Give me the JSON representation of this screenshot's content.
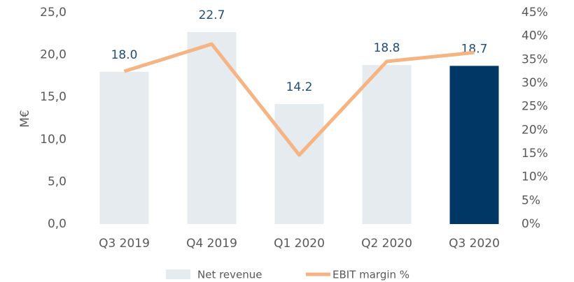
{
  "chart_data": {
    "type": "bar",
    "ylabel": "M€",
    "categories": [
      "Q3 2019",
      "Q4 2019",
      "Q1 2020",
      "Q2 2020",
      "Q3 2020"
    ],
    "series": [
      {
        "name": "Net revenue",
        "type": "bar",
        "color": "#e5ebef",
        "colors": [
          "#e5ebef",
          "#e5ebef",
          "#e5ebef",
          "#e5ebef",
          "#003764"
        ],
        "values": [
          18.0,
          22.7,
          14.2,
          18.8,
          18.7
        ],
        "value_labels": [
          "18.0",
          "22.7",
          "14.2",
          "18.8",
          "18.7"
        ]
      },
      {
        "name": "EBIT margin %",
        "type": "line",
        "axis": "y2",
        "color": "#f5b482",
        "values": [
          32.5,
          38.3,
          14.7,
          34.6,
          36.5
        ]
      }
    ],
    "ylim": [
      0,
      25
    ],
    "yticks": [
      {
        "value": 0,
        "label": "0,0"
      },
      {
        "value": 5,
        "label": "5,0"
      },
      {
        "value": 10,
        "label": "10,0"
      },
      {
        "value": 15,
        "label": "15,0"
      },
      {
        "value": 20,
        "label": "20,0"
      },
      {
        "value": 25,
        "label": "25,0"
      }
    ],
    "y2lim": [
      0,
      45
    ],
    "y2ticks": [
      {
        "value": 0,
        "label": "0%"
      },
      {
        "value": 5,
        "label": "5%"
      },
      {
        "value": 10,
        "label": "10%"
      },
      {
        "value": 15,
        "label": "15%"
      },
      {
        "value": 20,
        "label": "20%"
      },
      {
        "value": 25,
        "label": "25%"
      },
      {
        "value": 30,
        "label": "30%"
      },
      {
        "value": 35,
        "label": "35%"
      },
      {
        "value": 40,
        "label": "40%"
      },
      {
        "value": 45,
        "label": "45%"
      }
    ],
    "grid": false,
    "legend": "bottom"
  }
}
